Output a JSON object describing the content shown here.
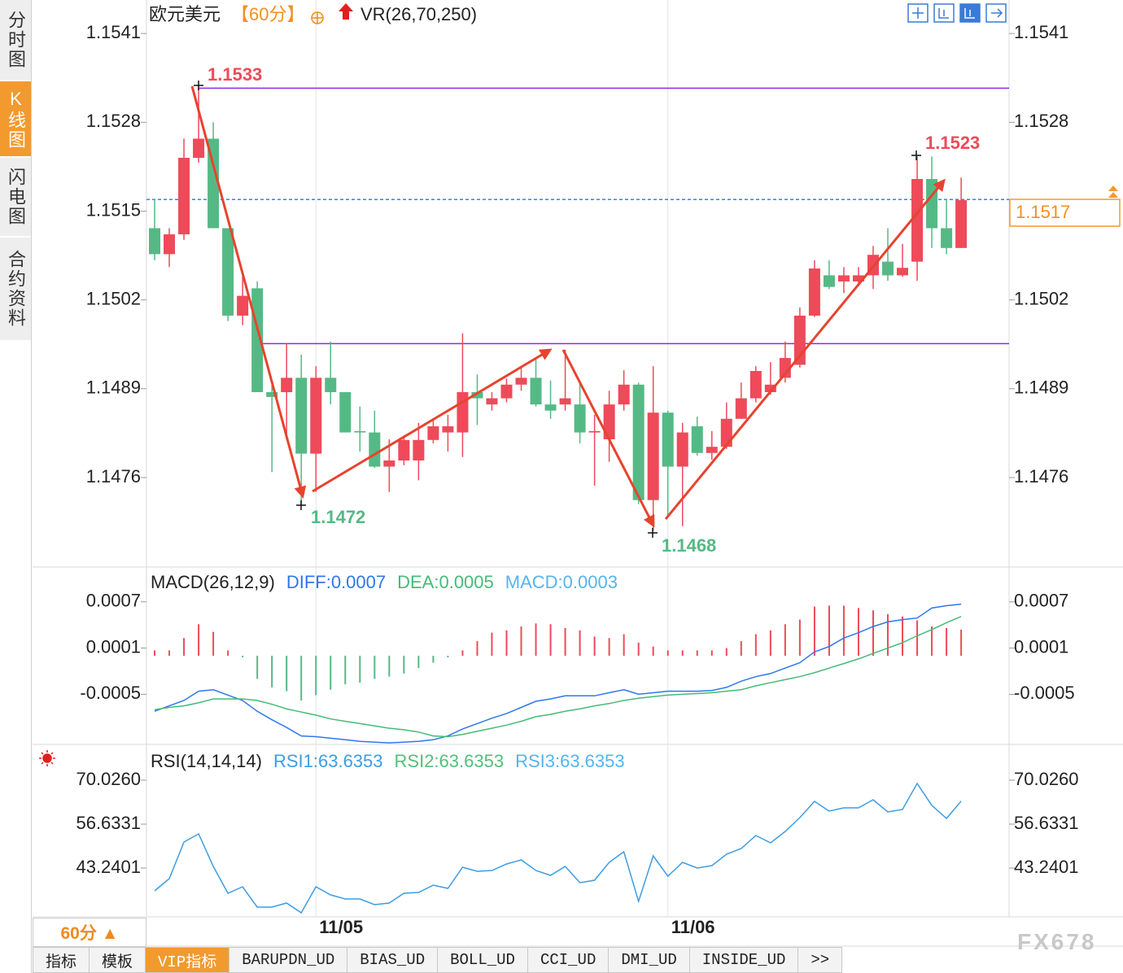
{
  "ui": {
    "side_tabs": [
      "分时图",
      "K线图",
      "闪电图",
      "合约资料"
    ],
    "period_button": "60分 ▲",
    "bottom_tabs": [
      "指标",
      "模板",
      "VIP指标",
      "BARUPDN_UD",
      "BIAS_UD",
      "BOLL_UD",
      "CCI_UD",
      "DMI_UD",
      "INSIDE_UD",
      ">>"
    ],
    "watermark": "FX678"
  },
  "chart_data": [
    {
      "type": "candlestick",
      "title": "欧元美元",
      "period": "【60分】",
      "indicator": "VR(26,70,250)",
      "categories": [
        null,
        null,
        null,
        null,
        null,
        null,
        null,
        null,
        null,
        null,
        null,
        "11/05",
        null,
        null,
        null,
        null,
        null,
        null,
        null,
        null,
        null,
        null,
        null,
        null,
        null,
        null,
        null,
        null,
        null,
        null,
        null,
        null,
        null,
        null,
        null,
        "11/06",
        null,
        null,
        null,
        null,
        null,
        null,
        null,
        null,
        null,
        null,
        null,
        null,
        null,
        null,
        null,
        null,
        null,
        null,
        null,
        null
      ],
      "open": [
        1.15125,
        1.15087,
        1.15116,
        1.15228,
        1.15256,
        1.15125,
        1.14997,
        1.15037,
        1.14885,
        1.14885,
        1.14906,
        1.14795,
        1.14906,
        1.14885,
        1.14828,
        1.14826,
        1.14776,
        1.14785,
        1.14785,
        1.14815,
        1.14826,
        1.14826,
        1.14885,
        1.14867,
        1.14876,
        1.14896,
        1.14906,
        1.14867,
        1.14867,
        1.14867,
        1.14826,
        1.14816,
        1.14867,
        1.14896,
        1.14727,
        1.14855,
        1.14776,
        1.14835,
        1.14796,
        1.14805,
        1.14846,
        1.14876,
        1.14885,
        1.14906,
        1.14925,
        1.14997,
        1.15056,
        1.15047,
        1.15047,
        1.15056,
        1.15076,
        1.15056,
        1.15076,
        1.15197,
        1.15125,
        1.15096
      ],
      "high": [
        1.15167,
        1.15125,
        1.15256,
        1.1533,
        1.1528,
        1.15125,
        1.15054,
        1.15047,
        1.14899,
        1.14956,
        1.1494,
        1.14923,
        1.14959,
        1.14885,
        1.14864,
        1.14858,
        1.14816,
        1.14822,
        1.1484,
        1.14846,
        1.14852,
        1.14971,
        1.14911,
        1.14885,
        1.14905,
        1.14921,
        1.14935,
        1.14902,
        1.14947,
        1.14899,
        1.14852,
        1.14887,
        1.14917,
        1.14899,
        1.14923,
        1.14858,
        1.1484,
        1.14849,
        1.14828,
        1.1487,
        1.14899,
        1.14923,
        1.14929,
        1.14959,
        1.15009,
        1.15078,
        1.15078,
        1.15068,
        1.15068,
        1.15099,
        1.15125,
        1.15102,
        1.1523,
        1.1523,
        1.15167,
        1.15199
      ],
      "low": [
        1.15078,
        1.15068,
        1.15108,
        1.15221,
        1.15125,
        1.14989,
        1.14983,
        1.14885,
        1.14768,
        1.14816,
        1.1472,
        1.14739,
        1.14867,
        1.14826,
        1.14798,
        1.14774,
        1.14739,
        1.14778,
        1.14756,
        1.1481,
        1.14798,
        1.1479,
        1.14837,
        1.14858,
        1.1487,
        1.14887,
        1.14864,
        1.14846,
        1.14858,
        1.1481,
        1.14748,
        1.14783,
        1.14858,
        1.14721,
        1.14682,
        1.14705,
        1.14689,
        1.14792,
        1.14786,
        1.14802,
        1.14846,
        1.1487,
        1.14881,
        1.14899,
        1.14921,
        1.14995,
        1.15036,
        1.1503,
        1.1504,
        1.15036,
        1.15048,
        1.15054,
        1.15048,
        1.15096,
        1.15087,
        1.15096
      ],
      "close": [
        1.15087,
        1.15116,
        1.15228,
        1.15256,
        1.15125,
        1.14997,
        1.15026,
        1.14885,
        1.14878,
        1.14906,
        1.14795,
        1.14906,
        1.14885,
        1.14826,
        1.14826,
        1.14776,
        1.14785,
        1.14815,
        1.14815,
        1.14835,
        1.14835,
        1.14885,
        1.14876,
        1.14876,
        1.14896,
        1.14906,
        1.14867,
        1.14858,
        1.14876,
        1.14826,
        1.14828,
        1.14867,
        1.14896,
        1.14727,
        1.14855,
        1.14776,
        1.14826,
        1.14796,
        1.14805,
        1.14846,
        1.14876,
        1.14916,
        1.14896,
        1.14935,
        1.14997,
        1.15066,
        1.15039,
        1.15056,
        1.15056,
        1.15086,
        1.15056,
        1.15067,
        1.15197,
        1.15125,
        1.15096,
        1.15166
      ],
      "up_color": "#ee4a5a",
      "down_color": "#55b985",
      "ylim": [
        1.14629,
        1.15459
      ],
      "yticks": [
        1.1541,
        1.1528,
        1.1515,
        1.1502,
        1.1489,
        1.1476
      ],
      "grid": false,
      "levels": [
        {
          "value": 1.1533,
          "color": "#8a2be2"
        },
        {
          "value": 1.14956,
          "color": "#8a2be2"
        }
      ],
      "last_price": {
        "value": 1.15167,
        "label": "1.1517",
        "color": "#1e88ff"
      },
      "annotations": [
        {
          "text": "1.1533",
          "color": "#ee4a5a"
        },
        {
          "text": "1.1472",
          "color": "#55b985"
        },
        {
          "text": "1.1468",
          "color": "#55b985"
        },
        {
          "text": "1.1523",
          "color": "#ee4a5a"
        }
      ]
    },
    {
      "type": "macd",
      "title": "MACD(26,12,9)",
      "histogram": {
        "name": "MACD:0.0003",
        "color": "#55b4ee",
        "up_color": "#ee4a5a",
        "down_color": "#55b985",
        "values": [
          7e-05,
          7e-05,
          0.00023,
          0.00041,
          0.00031,
          7e-05,
          -2e-05,
          -0.0003,
          -0.00041,
          -0.00046,
          -0.00058,
          -0.00051,
          -0.00044,
          -0.00037,
          -0.00035,
          -0.0003,
          -0.00027,
          -0.00023,
          -0.00016,
          -9e-05,
          -2e-05,
          7e-05,
          0.00019,
          0.0003,
          0.00033,
          0.00038,
          0.00042,
          0.00041,
          0.00036,
          0.00033,
          0.00025,
          0.00023,
          0.00028,
          0.00017,
          0.00012,
          7e-05,
          7e-05,
          7e-05,
          7e-05,
          0.0001,
          0.00019,
          0.00028,
          0.00033,
          0.00041,
          0.00047,
          0.00064,
          0.00065,
          0.00065,
          0.00062,
          0.00059,
          0.00054,
          0.00051,
          0.00046,
          0.00038,
          0.00036,
          0.00034
        ]
      },
      "series": [
        {
          "name": "DIFF:0.0007",
          "color": "#2f77ea",
          "values": [
            -0.00072,
            -0.00065,
            -0.00058,
            -0.00046,
            -0.00044,
            -0.00051,
            -0.00058,
            -0.00072,
            -0.00083,
            -0.00093,
            -0.00104,
            -0.00105,
            -0.00107,
            -0.00109,
            -0.00111,
            -0.00112,
            -0.00113,
            -0.00112,
            -0.00111,
            -0.00109,
            -0.00104,
            -0.00095,
            -0.00088,
            -0.00081,
            -0.00075,
            -0.00067,
            -0.00059,
            -0.00056,
            -0.00052,
            -0.00052,
            -0.00052,
            -0.00048,
            -0.00044,
            -0.0005,
            -0.00048,
            -0.00046,
            -0.00046,
            -0.00046,
            -0.00045,
            -0.00041,
            -0.00033,
            -0.00027,
            -0.00023,
            -0.00016,
            -9e-05,
            5e-05,
            0.00012,
            0.00023,
            0.0003,
            0.00038,
            0.00044,
            0.00047,
            0.00049,
            0.00062,
            0.00065,
            0.00067
          ]
        },
        {
          "name": "DEA:0.0005",
          "color": "#45bb78",
          "values": [
            -0.0007,
            -0.00067,
            -0.00065,
            -0.00061,
            -0.00056,
            -0.00056,
            -0.00056,
            -0.00058,
            -0.00063,
            -0.00069,
            -0.00073,
            -0.00077,
            -0.00082,
            -0.00085,
            -0.00088,
            -0.00091,
            -0.00094,
            -0.00096,
            -0.00099,
            -0.00104,
            -0.00105,
            -0.00102,
            -0.00098,
            -0.00094,
            -0.0009,
            -0.00085,
            -0.00079,
            -0.00076,
            -0.00072,
            -0.00069,
            -0.00065,
            -0.00062,
            -0.00058,
            -0.00055,
            -0.00053,
            -0.00051,
            -0.0005,
            -0.00049,
            -0.00048,
            -0.00046,
            -0.00044,
            -0.00039,
            -0.00035,
            -0.00031,
            -0.00027,
            -0.00022,
            -0.00016,
            -0.0001,
            -4e-05,
            3e-05,
            0.0001,
            0.00017,
            0.00026,
            0.00034,
            0.00043,
            0.00051
          ]
        }
      ],
      "ylim": [
        -0.00115,
        0.00112
      ],
      "yticks": [
        0.0007,
        0.0001,
        -0.0005
      ]
    },
    {
      "type": "line",
      "title": "RSI(14,14,14)",
      "series": [
        {
          "name": "RSI1:63.6353",
          "color": "#3d9de2",
          "values": [
            36.3,
            40.02,
            51.18,
            53.66,
            43.74,
            35.55,
            37.54,
            31.34,
            31.34,
            32.58,
            29.6,
            37.54,
            35.06,
            33.82,
            33.82,
            32.08,
            32.58,
            35.55,
            35.8,
            38.03,
            37.04,
            43.49,
            42.25,
            42.5,
            44.48,
            45.72,
            42.5,
            41.01,
            43.74,
            38.78,
            39.52,
            44.98,
            48.2,
            33.07,
            46.96,
            40.76,
            44.98,
            43.24,
            43.98,
            47.46,
            49.19,
            53.16,
            50.93,
            54.4,
            58.62,
            63.58,
            60.6,
            61.59,
            61.59,
            64.07,
            60.35,
            61.1,
            69.03,
            62.34,
            58.37,
            63.64
          ]
        }
      ],
      "legend_extra": [
        {
          "name": "RSI2:63.6353",
          "color": "#52c07a"
        },
        {
          "name": "RSI3:63.6353",
          "color": "#55b4ee"
        }
      ],
      "ylim": [
        28.86,
        80.19
      ],
      "yticks": [
        {
          "value": 70.026,
          "label": "70.0260"
        },
        56.6331,
        43.2401
      ]
    }
  ]
}
